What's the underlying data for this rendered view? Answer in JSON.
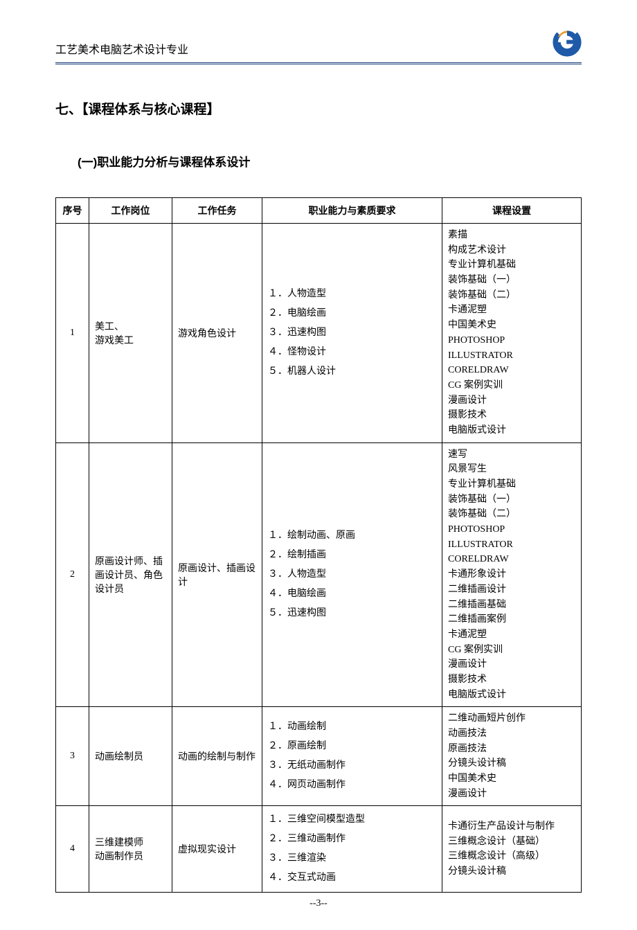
{
  "header": {
    "title": "工艺美术电脑艺术设计专业",
    "logo_color_primary": "#1e5aa8",
    "logo_color_accent": "#e8a030"
  },
  "section_title": "七、【课程体系与核心课程】",
  "subsection_title": "(一)职业能力分析与课程体系设计",
  "table": {
    "headers": {
      "seq": "序号",
      "job": "工作岗位",
      "task": "工作任务",
      "req": "职业能力与素质要求",
      "course": "课程设置"
    },
    "rows": [
      {
        "seq": "1",
        "job": "美工、\n游戏美工",
        "task": "游戏角色设计",
        "reqs": [
          "１．人物造型",
          "２．电脑绘画",
          "３．迅速构图",
          "４．怪物设计",
          "５．机器人设计"
        ],
        "courses": [
          "素描",
          "构成艺术设计",
          "专业计算机基础",
          "装饰基础（一）",
          "装饰基础（二）",
          "卡通泥塑",
          "中国美术史",
          "PHOTOSHOP",
          "ILLUSTRATOR",
          "CORELDRAW",
          "CG 案例实训",
          "漫画设计",
          "摄影技术",
          "电脑版式设计"
        ]
      },
      {
        "seq": "2",
        "job": "原画设计师、插画设计员、角色设计员",
        "task": "原画设计、插画设计",
        "reqs": [
          "１．绘制动画、原画",
          "２．绘制插画",
          "３．人物造型",
          "４．电脑绘画",
          "５．迅速构图"
        ],
        "courses": [
          "速写",
          "风景写生",
          "专业计算机基础",
          "装饰基础（一）",
          "装饰基础（二）",
          "PHOTOSHOP",
          "ILLUSTRATOR",
          "CORELDRAW",
          "卡通形象设计",
          "二维插画设计",
          "二维插画基础",
          "二维插画案例",
          "卡通泥塑",
          "CG 案例实训",
          "漫画设计",
          "摄影技术",
          "电脑版式设计"
        ]
      },
      {
        "seq": "3",
        "job": "动画绘制员",
        "task": "动画的绘制与制作",
        "reqs": [
          "１．动画绘制",
          "２．原画绘制",
          "３．无纸动画制作",
          "４．网页动画制作"
        ],
        "courses": [
          "二维动画短片创作",
          "动画技法",
          "原画技法",
          "分镜头设计稿",
          "中国美术史",
          "漫画设计"
        ]
      },
      {
        "seq": "4",
        "job": "三维建模师\n动画制作员",
        "task": "虚拟现实设计",
        "reqs": [
          "１．三维空间模型造型",
          "２．三维动画制作",
          "３．三维渲染",
          "４．交互式动画"
        ],
        "courses": [
          "卡通衍生产品设计与制作",
          "三维概念设计（基础）",
          "三维概念设计（高级）",
          "分镜头设计稿"
        ]
      }
    ]
  },
  "page_number": "--3--"
}
